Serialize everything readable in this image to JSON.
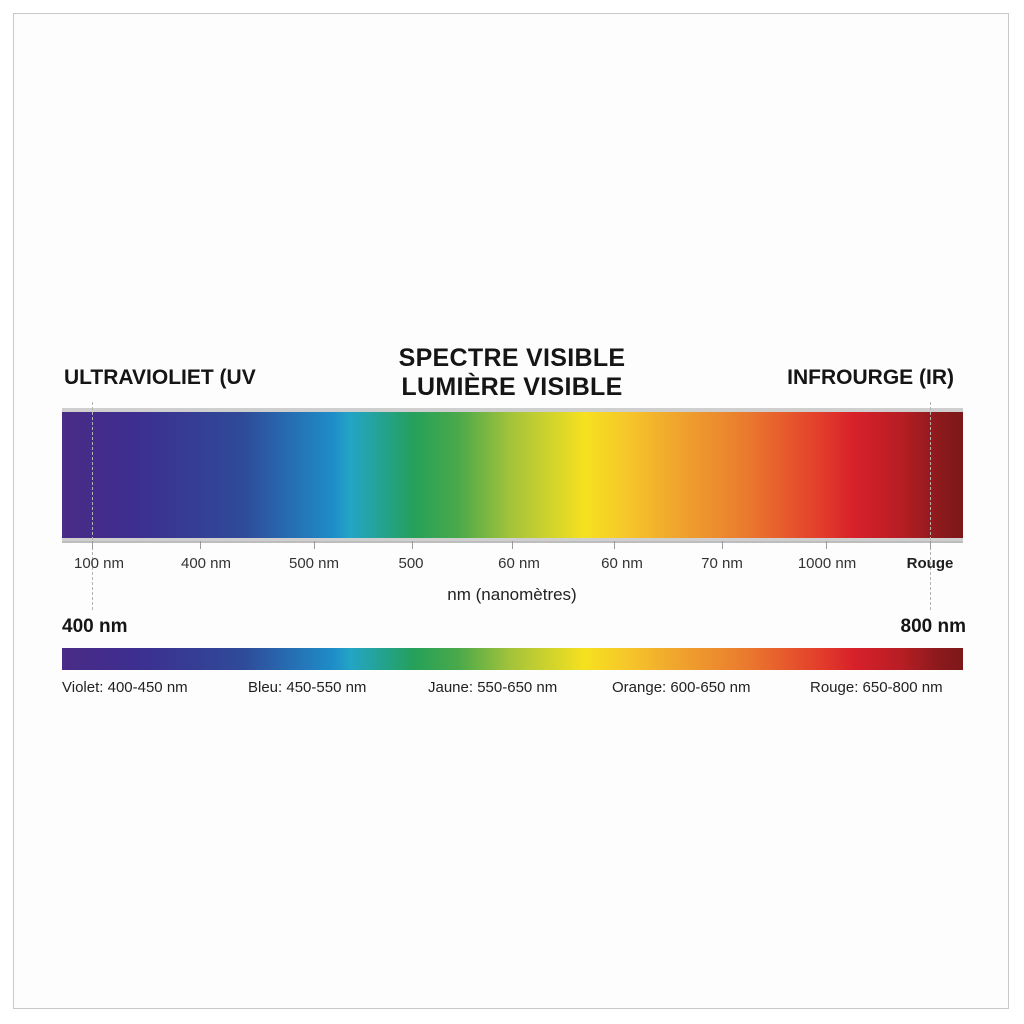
{
  "title": {
    "line1": "SPECTRE VISIBLE",
    "line2": "LUMIÈRE VISIBLE"
  },
  "left_region_label": "ULTRAVIOLIET (UV",
  "right_region_label": "INFROURGE (IR)",
  "ticks": [
    "100 nm",
    "400 nm",
    "500 nm",
    "500",
    "60 nm",
    "60 nm",
    "70 nm",
    "1000 nm",
    "Rouge"
  ],
  "unit_label": "nm (nanomètres)",
  "range_start": "400 nm",
  "range_end": "800 nm",
  "color_ranges": [
    {
      "name": "Violet",
      "range": ": 400-450 nm"
    },
    {
      "name": "Bleu",
      "range": ": 450-550 nm"
    },
    {
      "name": "Jaune",
      "range": ": 550-650 nm"
    },
    {
      "name": "Orange",
      "range": ": 600-650 nm"
    },
    {
      "name": "Rouge",
      "range": ": 650-800 nm"
    }
  ],
  "colors": {
    "violet": "#4a2b86",
    "blue": "#1e8cc8",
    "green": "#25a05a",
    "yellow": "#f6e11f",
    "orange": "#ea7a2e",
    "red": "#d7202a",
    "dark_red": "#7c1719"
  }
}
